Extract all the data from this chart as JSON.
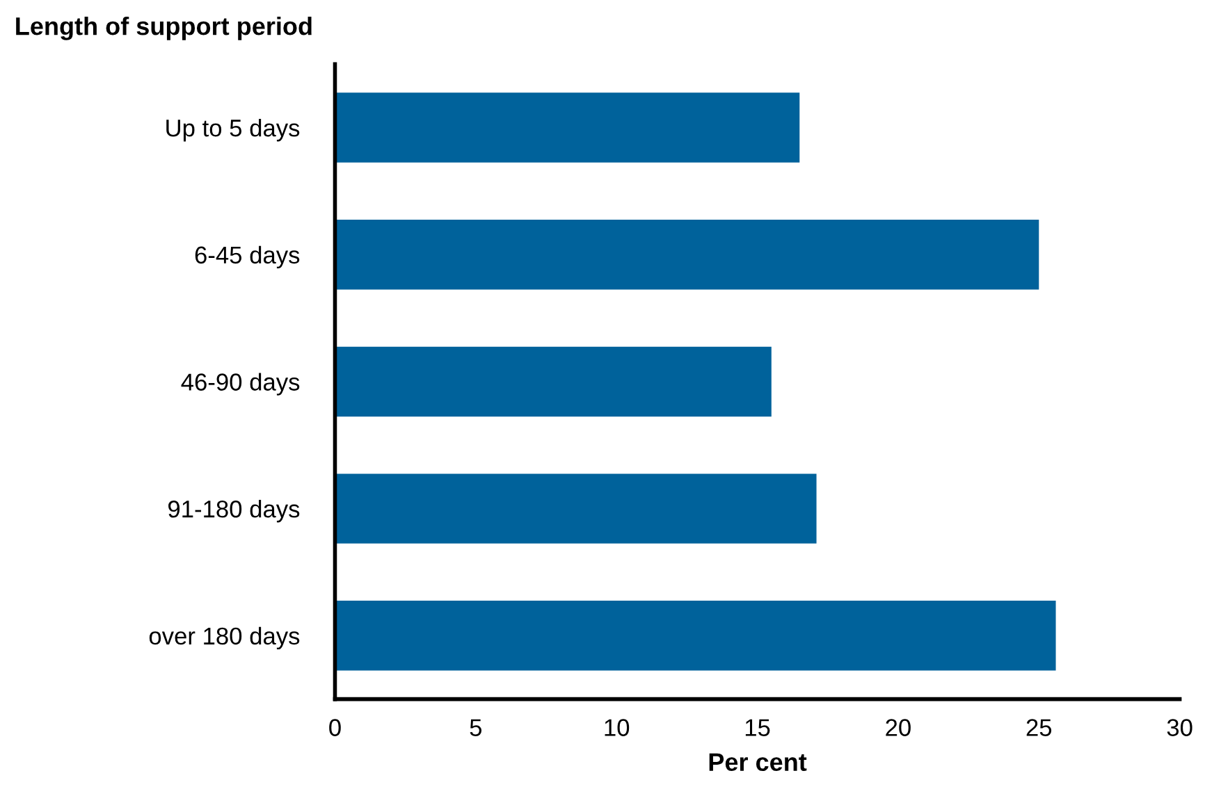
{
  "chart_data": {
    "type": "bar",
    "orientation": "horizontal",
    "title": "Length of support period",
    "xlabel": "Per cent",
    "categories": [
      "Up to 5 days",
      "6-45 days",
      "46-90 days",
      "91-180 days",
      "over 180 days"
    ],
    "values": [
      16.5,
      25.0,
      15.5,
      17.1,
      25.6
    ],
    "color": "#00629b",
    "xlim": [
      0,
      30
    ],
    "xticks": [
      0,
      5,
      10,
      15,
      20,
      25,
      30
    ],
    "grid": false
  }
}
